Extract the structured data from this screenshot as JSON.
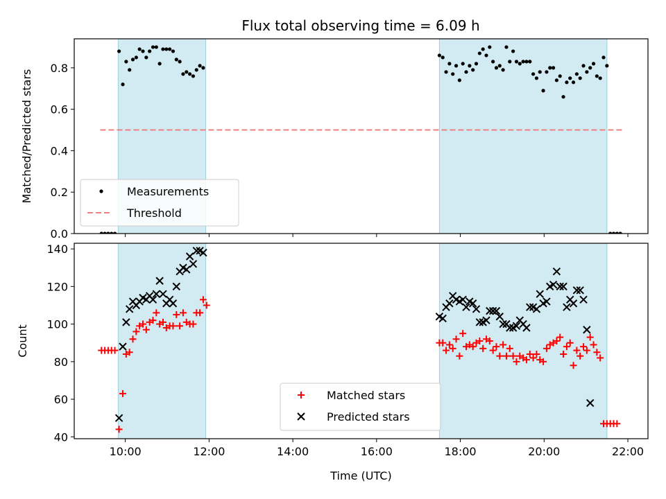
{
  "title": "Flux total observing time = 6.09 h",
  "colors": {
    "shade": "#add8e6",
    "measurement": "#000000",
    "threshold": "#f08080",
    "matched": "#ff0000",
    "predicted": "#000000"
  },
  "chart_data": [
    {
      "type": "scatter",
      "ylabel": "Matched/Predicted stars",
      "xlim": [
        8.78,
        22.48
      ],
      "ylim": [
        0,
        0.94
      ],
      "y_ticks": [
        0.0,
        0.2,
        0.4,
        0.6,
        0.8
      ],
      "x_ticks": [
        10,
        12,
        14,
        16,
        18,
        20,
        22
      ],
      "tick_labels_visible": false,
      "shaded_intervals": [
        [
          9.83,
          11.92
        ],
        [
          17.5,
          21.5
        ]
      ],
      "legend": {
        "position": "lower left",
        "entries": [
          "Measurements",
          "Threshold"
        ]
      },
      "threshold": {
        "name": "Threshold",
        "value": 0.5,
        "x_range": [
          9.4,
          21.9
        ],
        "style": "dashed"
      },
      "series": [
        {
          "name": "Measurements",
          "marker": "dot",
          "points": [
            [
              9.43,
              0
            ],
            [
              9.51,
              0
            ],
            [
              9.59,
              0
            ],
            [
              9.67,
              0
            ],
            [
              9.75,
              0
            ],
            [
              9.85,
              0.88
            ],
            [
              9.94,
              0.72
            ],
            [
              10.02,
              0.83
            ],
            [
              10.1,
              0.79
            ],
            [
              10.18,
              0.84
            ],
            [
              10.26,
              0.85
            ],
            [
              10.34,
              0.89
            ],
            [
              10.42,
              0.88
            ],
            [
              10.5,
              0.85
            ],
            [
              10.58,
              0.88
            ],
            [
              10.66,
              0.9
            ],
            [
              10.74,
              0.9
            ],
            [
              10.82,
              0.82
            ],
            [
              10.9,
              0.89
            ],
            [
              10.98,
              0.89
            ],
            [
              11.06,
              0.89
            ],
            [
              11.14,
              0.88
            ],
            [
              11.22,
              0.84
            ],
            [
              11.3,
              0.83
            ],
            [
              11.38,
              0.77
            ],
            [
              11.46,
              0.78
            ],
            [
              11.54,
              0.77
            ],
            [
              11.62,
              0.76
            ],
            [
              11.7,
              0.79
            ],
            [
              11.78,
              0.81
            ],
            [
              11.86,
              0.8
            ],
            [
              17.5,
              0.86
            ],
            [
              17.58,
              0.85
            ],
            [
              17.66,
              0.78
            ],
            [
              17.74,
              0.82
            ],
            [
              17.82,
              0.77
            ],
            [
              17.9,
              0.81
            ],
            [
              17.98,
              0.74
            ],
            [
              18.06,
              0.82
            ],
            [
              18.14,
              0.78
            ],
            [
              18.22,
              0.81
            ],
            [
              18.3,
              0.79
            ],
            [
              18.38,
              0.82
            ],
            [
              18.46,
              0.87
            ],
            [
              18.54,
              0.89
            ],
            [
              18.62,
              0.86
            ],
            [
              18.7,
              0.9
            ],
            [
              18.78,
              0.83
            ],
            [
              18.86,
              0.8
            ],
            [
              18.94,
              0.81
            ],
            [
              19.02,
              0.79
            ],
            [
              19.1,
              0.9
            ],
            [
              19.18,
              0.83
            ],
            [
              19.26,
              0.88
            ],
            [
              19.34,
              0.83
            ],
            [
              19.42,
              0.82
            ],
            [
              19.5,
              0.83
            ],
            [
              19.58,
              0.83
            ],
            [
              19.66,
              0.83
            ],
            [
              19.74,
              0.77
            ],
            [
              19.82,
              0.75
            ],
            [
              19.9,
              0.78
            ],
            [
              19.98,
              0.69
            ],
            [
              20.06,
              0.78
            ],
            [
              20.14,
              0.8
            ],
            [
              20.22,
              0.8
            ],
            [
              20.3,
              0.74
            ],
            [
              20.38,
              0.76
            ],
            [
              20.46,
              0.66
            ],
            [
              20.54,
              0.73
            ],
            [
              20.62,
              0.75
            ],
            [
              20.7,
              0.73
            ],
            [
              20.78,
              0.77
            ],
            [
              20.86,
              0.75
            ],
            [
              20.94,
              0.81
            ],
            [
              21.02,
              0.78
            ],
            [
              21.1,
              0.8
            ],
            [
              21.18,
              0.82
            ],
            [
              21.26,
              0.76
            ],
            [
              21.34,
              0.75
            ],
            [
              21.42,
              0.85
            ],
            [
              21.5,
              0.81
            ],
            [
              21.58,
              0
            ],
            [
              21.66,
              0
            ],
            [
              21.74,
              0
            ],
            [
              21.82,
              0
            ]
          ]
        }
      ]
    },
    {
      "type": "scatter",
      "xlabel": "Time (UTC)",
      "ylabel": "Count",
      "xlim": [
        8.78,
        22.48
      ],
      "ylim": [
        39,
        143
      ],
      "y_ticks": [
        40,
        60,
        80,
        100,
        120,
        140
      ],
      "x_ticks": [
        10,
        12,
        14,
        16,
        18,
        20,
        22
      ],
      "x_tick_labels": [
        "10:00",
        "12:00",
        "14:00",
        "16:00",
        "18:00",
        "20:00",
        "22:00"
      ],
      "shaded_intervals": [
        [
          9.83,
          11.92
        ],
        [
          17.5,
          21.5
        ]
      ],
      "legend": {
        "position": "lower center",
        "entries": [
          "Matched stars",
          "Predicted stars"
        ]
      },
      "series": [
        {
          "name": "Matched stars",
          "marker": "plus",
          "points": [
            [
              9.43,
              86
            ],
            [
              9.51,
              86
            ],
            [
              9.59,
              86
            ],
            [
              9.67,
              86
            ],
            [
              9.75,
              86
            ],
            [
              9.85,
              44
            ],
            [
              9.94,
              63
            ],
            [
              10.02,
              84
            ],
            [
              10.1,
              85
            ],
            [
              10.18,
              92
            ],
            [
              10.26,
              96
            ],
            [
              10.34,
              99
            ],
            [
              10.42,
              100
            ],
            [
              10.5,
              97
            ],
            [
              10.58,
              101
            ],
            [
              10.66,
              102
            ],
            [
              10.74,
              106
            ],
            [
              10.82,
              100
            ],
            [
              10.9,
              101
            ],
            [
              10.98,
              98
            ],
            [
              11.06,
              99
            ],
            [
              11.14,
              99
            ],
            [
              11.22,
              105
            ],
            [
              11.3,
              99
            ],
            [
              11.38,
              106
            ],
            [
              11.46,
              101
            ],
            [
              11.54,
              100
            ],
            [
              11.62,
              100
            ],
            [
              11.7,
              106
            ],
            [
              11.78,
              106
            ],
            [
              11.86,
              113
            ],
            [
              11.94,
              110
            ],
            [
              17.5,
              90
            ],
            [
              17.58,
              90
            ],
            [
              17.66,
              86
            ],
            [
              17.74,
              89
            ],
            [
              17.82,
              87
            ],
            [
              17.9,
              92
            ],
            [
              17.98,
              83
            ],
            [
              18.06,
              95
            ],
            [
              18.14,
              88
            ],
            [
              18.22,
              89
            ],
            [
              18.3,
              88
            ],
            [
              18.38,
              90
            ],
            [
              18.46,
              91
            ],
            [
              18.54,
              87
            ],
            [
              18.62,
              92
            ],
            [
              18.7,
              91
            ],
            [
              18.78,
              86
            ],
            [
              18.86,
              88
            ],
            [
              18.94,
              83
            ],
            [
              19.02,
              89
            ],
            [
              19.1,
              83
            ],
            [
              19.18,
              87
            ],
            [
              19.26,
              83
            ],
            [
              19.34,
              80
            ],
            [
              19.42,
              83
            ],
            [
              19.5,
              82
            ],
            [
              19.58,
              81
            ],
            [
              19.66,
              84
            ],
            [
              19.74,
              82
            ],
            [
              19.82,
              84
            ],
            [
              19.9,
              81
            ],
            [
              19.98,
              80
            ],
            [
              20.06,
              87
            ],
            [
              20.14,
              89
            ],
            [
              20.22,
              90
            ],
            [
              20.3,
              91
            ],
            [
              20.38,
              93
            ],
            [
              20.46,
              84
            ],
            [
              20.54,
              88
            ],
            [
              20.62,
              90
            ],
            [
              20.7,
              78
            ],
            [
              20.78,
              86
            ],
            [
              20.86,
              83
            ],
            [
              20.94,
              88
            ],
            [
              21.02,
              86
            ],
            [
              21.1,
              93
            ],
            [
              21.18,
              89
            ],
            [
              21.26,
              85
            ],
            [
              21.34,
              82
            ],
            [
              21.42,
              47
            ],
            [
              21.5,
              47
            ],
            [
              21.58,
              47
            ],
            [
              21.66,
              47
            ],
            [
              21.74,
              47
            ]
          ]
        },
        {
          "name": "Predicted stars",
          "marker": "x",
          "points": [
            [
              9.85,
              50
            ],
            [
              9.94,
              88
            ],
            [
              10.02,
              101
            ],
            [
              10.1,
              108
            ],
            [
              10.18,
              112
            ],
            [
              10.26,
              110
            ],
            [
              10.34,
              112
            ],
            [
              10.42,
              114
            ],
            [
              10.5,
              113
            ],
            [
              10.58,
              115
            ],
            [
              10.66,
              113
            ],
            [
              10.74,
              116
            ],
            [
              10.82,
              123
            ],
            [
              10.9,
              116
            ],
            [
              10.98,
              111
            ],
            [
              11.06,
              113
            ],
            [
              11.14,
              111
            ],
            [
              11.22,
              120
            ],
            [
              11.3,
              128
            ],
            [
              11.38,
              130
            ],
            [
              11.46,
              129
            ],
            [
              11.54,
              136
            ],
            [
              11.62,
              132
            ],
            [
              11.7,
              139
            ],
            [
              11.78,
              139
            ],
            [
              11.86,
              138
            ],
            [
              17.5,
              104
            ],
            [
              17.58,
              103
            ],
            [
              17.66,
              109
            ],
            [
              17.74,
              111
            ],
            [
              17.82,
              115
            ],
            [
              17.9,
              113
            ],
            [
              17.98,
              112
            ],
            [
              18.06,
              113
            ],
            [
              18.14,
              109
            ],
            [
              18.22,
              112
            ],
            [
              18.3,
              111
            ],
            [
              18.38,
              108
            ],
            [
              18.46,
              101
            ],
            [
              18.54,
              101
            ],
            [
              18.62,
              102
            ],
            [
              18.7,
              107
            ],
            [
              18.78,
              107
            ],
            [
              18.86,
              107
            ],
            [
              18.94,
              104
            ],
            [
              19.02,
              100
            ],
            [
              19.1,
              100
            ],
            [
              19.18,
              98
            ],
            [
              19.26,
              98
            ],
            [
              19.34,
              99
            ],
            [
              19.42,
              102
            ],
            [
              19.5,
              100
            ],
            [
              19.58,
              98
            ],
            [
              19.66,
              109
            ],
            [
              19.74,
              109
            ],
            [
              19.82,
              108
            ],
            [
              19.9,
              116
            ],
            [
              19.98,
              111
            ],
            [
              20.06,
              112
            ],
            [
              20.14,
              120
            ],
            [
              20.22,
              121
            ],
            [
              20.3,
              128
            ],
            [
              20.38,
              120
            ],
            [
              20.46,
              120
            ],
            [
              20.54,
              109
            ],
            [
              20.62,
              113
            ],
            [
              20.7,
              111
            ],
            [
              20.78,
              118
            ],
            [
              20.86,
              118
            ],
            [
              20.94,
              113
            ],
            [
              21.02,
              97
            ],
            [
              21.1,
              58
            ]
          ]
        }
      ]
    }
  ]
}
